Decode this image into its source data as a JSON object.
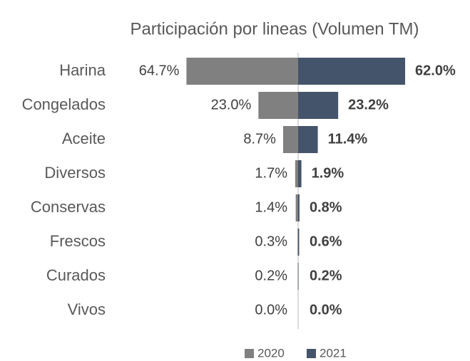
{
  "chart_data": {
    "type": "butterfly",
    "title": "Participación por lineas (Volumen TM)",
    "categories": [
      "Harina",
      "Congelados",
      "Aceite",
      "Diversos",
      "Conservas",
      "Frescos",
      "Curados",
      "Vivos"
    ],
    "series": [
      {
        "name": "2020",
        "color": "#808080",
        "values": [
          64.7,
          23.0,
          8.7,
          1.7,
          1.4,
          0.3,
          0.2,
          0.0
        ],
        "value_labels": [
          "64.7%",
          "23.0%",
          "8.7%",
          "1.7%",
          "1.4%",
          "0.3%",
          "0.2%",
          "0.0%"
        ]
      },
      {
        "name": "2021",
        "color": "#44546a",
        "values": [
          62.0,
          23.2,
          11.4,
          1.9,
          0.8,
          0.6,
          0.2,
          0.0
        ],
        "value_labels": [
          "62.0%",
          "23.2%",
          "11.4%",
          "1.9%",
          "0.8%",
          "0.6%",
          "0.2%",
          "0.0%"
        ]
      }
    ],
    "legend": "bottom"
  }
}
